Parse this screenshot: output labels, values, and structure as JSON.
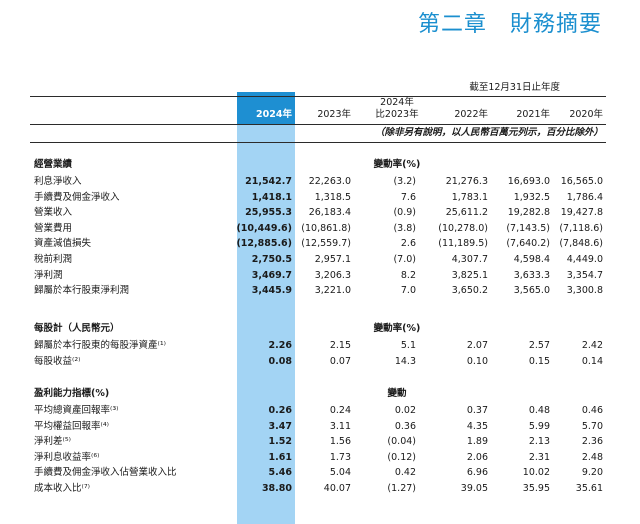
{
  "chapter_title": "第二章　財務摘要",
  "period_header": "截至12月31日止年度",
  "columns": [
    "2024年",
    "2023年",
    "2024年\n比2023年",
    "2022年",
    "2021年",
    "2020年"
  ],
  "unit_note": "（除非另有說明，以人民幣百萬元列示，百分比除外）",
  "sections": [
    {
      "title": "經營業績",
      "change_label": "變動率(%)",
      "rows": [
        {
          "label": "利息淨收入",
          "values": [
            "21,542.7",
            "22,263.0",
            "(3.2)",
            "21,276.3",
            "16,693.0",
            "16,565.0"
          ]
        },
        {
          "label": "手續費及佣金淨收入",
          "values": [
            "1,418.1",
            "1,318.5",
            "7.6",
            "1,783.1",
            "1,932.5",
            "1,786.4"
          ]
        },
        {
          "label": "營業收入",
          "values": [
            "25,955.3",
            "26,183.4",
            "(0.9)",
            "25,611.2",
            "19,282.8",
            "19,427.8"
          ]
        },
        {
          "label": "營業費用",
          "values": [
            "(10,449.6)",
            "(10,861.8)",
            "(3.8)",
            "(10,278.0)",
            "(7,143.5)",
            "(7,118.6)"
          ]
        },
        {
          "label": "資產減值損失",
          "values": [
            "(12,885.6)",
            "(12,559.7)",
            "2.6",
            "(11,189.5)",
            "(7,640.2)",
            "(7,848.6)"
          ]
        },
        {
          "label": "稅前利潤",
          "values": [
            "2,750.5",
            "2,957.1",
            "(7.0)",
            "4,307.7",
            "4,598.4",
            "4,449.0"
          ]
        },
        {
          "label": "淨利潤",
          "values": [
            "3,469.7",
            "3,206.3",
            "8.2",
            "3,825.1",
            "3,633.3",
            "3,354.7"
          ]
        },
        {
          "label": "歸屬於本行股東淨利潤",
          "values": [
            "3,445.9",
            "3,221.0",
            "7.0",
            "3,650.2",
            "3,565.0",
            "3,300.8"
          ]
        }
      ]
    },
    {
      "title": "每股計（人民幣元）",
      "change_label": "變動率(%)",
      "rows": [
        {
          "label": "歸屬於本行股東的每股淨資產⁽¹⁾",
          "values": [
            "2.26",
            "2.15",
            "5.1",
            "2.07",
            "2.57",
            "2.42"
          ]
        },
        {
          "label": "每股收益⁽²⁾",
          "values": [
            "0.08",
            "0.07",
            "14.3",
            "0.10",
            "0.15",
            "0.14"
          ]
        }
      ]
    },
    {
      "title": "盈利能力指標(%)",
      "change_label": "變動",
      "rows": [
        {
          "label": "平均總資產回報率⁽³⁾",
          "values": [
            "0.26",
            "0.24",
            "0.02",
            "0.37",
            "0.48",
            "0.46"
          ]
        },
        {
          "label": "平均權益回報率⁽⁴⁾",
          "values": [
            "3.47",
            "3.11",
            "0.36",
            "4.35",
            "5.99",
            "5.70"
          ]
        },
        {
          "label": "淨利差⁽⁵⁾",
          "values": [
            "1.52",
            "1.56",
            "(0.04)",
            "1.89",
            "2.13",
            "2.36"
          ]
        },
        {
          "label": "淨利息收益率⁽⁶⁾",
          "values": [
            "1.61",
            "1.73",
            "(0.12)",
            "2.06",
            "2.31",
            "2.48"
          ]
        },
        {
          "label": "手續費及佣金淨收入佔營業收入比",
          "values": [
            "5.46",
            "5.04",
            "0.42",
            "6.96",
            "10.02",
            "9.20"
          ]
        },
        {
          "label": "成本收入比⁽⁷⁾",
          "values": [
            "38.80",
            "40.07",
            "(1.27)",
            "39.05",
            "35.95",
            "35.61"
          ]
        }
      ]
    }
  ]
}
